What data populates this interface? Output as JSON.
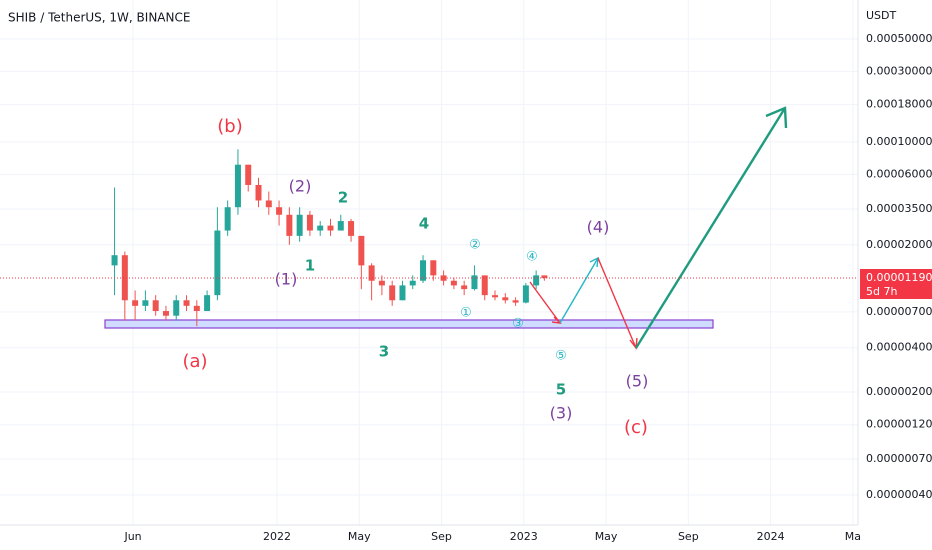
{
  "chart_data": {
    "type": "candlestick",
    "title": "SHIB / TetherUS, 1W, BINANCE",
    "y_unit": "USDT",
    "ylog": true,
    "grid": true,
    "up_color": "#26a69a",
    "down_color": "#ef5350",
    "x": [
      4.1,
      4.6,
      5.1,
      5.6,
      6.1,
      6.6,
      7.1,
      7.6,
      8.1,
      8.6,
      9.1,
      9.6,
      10.1,
      10.6,
      11.1,
      11.6,
      12.1,
      12.6,
      13.1,
      13.6,
      14.1,
      14.6,
      15.1,
      15.6,
      16.1,
      16.6,
      17.1,
      17.6,
      18.1,
      18.6,
      19.1,
      19.6,
      20.1,
      20.6,
      21.1,
      21.6,
      22.1,
      22.6,
      23.1,
      23.6,
      24.1,
      24.6,
      25.0
    ],
    "open": [
      1.45e-05,
      1.7e-05,
      8.4e-06,
      7.7e-06,
      8.4e-06,
      7.1e-06,
      6.6e-06,
      8.4e-06,
      7.7e-06,
      7.1e-06,
      9.1e-06,
      2.5e-05,
      3.6e-05,
      7e-05,
      5.1e-05,
      4e-05,
      3.6e-05,
      3.2e-05,
      2.3e-05,
      3.2e-05,
      2.5e-05,
      2.7e-05,
      2.5e-05,
      2.9e-05,
      2.3e-05,
      1.45e-05,
      1.14e-05,
      1.06e-05,
      8.4e-06,
      1.06e-05,
      1.14e-05,
      1.57e-05,
      1.24e-05,
      1.14e-05,
      1.06e-05,
      1e-05,
      1.24e-05,
      9.1e-06,
      8.8e-06,
      8.4e-06,
      8.1e-06,
      1.06e-05,
      1.24e-05
    ],
    "high": [
      4.9e-05,
      1.8e-05,
      9.8e-06,
      9.8e-06,
      9.1e-06,
      7.7e-06,
      9.1e-06,
      9.1e-06,
      8.4e-06,
      9.8e-06,
      3.6e-05,
      4e-05,
      8.9e-05,
      7e-05,
      5.7e-05,
      4.6e-05,
      4e-05,
      3.6e-05,
      3.6e-05,
      3.4e-05,
      2.9e-05,
      3e-05,
      3.2e-05,
      3e-05,
      2.3e-05,
      1.5e-05,
      1.24e-05,
      1.14e-05,
      1.14e-05,
      1.24e-05,
      1.7e-05,
      1.57e-05,
      1.34e-05,
      1.2e-05,
      1.14e-05,
      1.45e-05,
      1.24e-05,
      9.8e-06,
      9.4e-06,
      8.8e-06,
      1.1e-05,
      1.34e-05,
      1.24e-05
    ],
    "low": [
      9.1e-06,
      6.1e-06,
      6.1e-06,
      7.1e-06,
      6.6e-06,
      6.1e-06,
      6.1e-06,
      7.1e-06,
      5.6e-06,
      7.1e-06,
      8.4e-06,
      2.3e-05,
      3.2e-05,
      4.6e-05,
      3.6e-05,
      3.2e-05,
      2.7e-05,
      2e-05,
      2.1e-05,
      2.3e-05,
      2.3e-05,
      2.3e-05,
      2.5e-05,
      2.1e-05,
      1e-05,
      8.4e-06,
      9.1e-06,
      7.7e-06,
      8.4e-06,
      1e-05,
      1.1e-05,
      1.14e-05,
      1.06e-05,
      1e-05,
      9.1e-06,
      9.8e-06,
      8.4e-06,
      8.4e-06,
      8e-06,
      7.7e-06,
      8e-06,
      1e-05,
      1.14e-05
    ],
    "close": [
      1.7e-05,
      8.4e-06,
      7.7e-06,
      8.4e-06,
      7.1e-06,
      6.6e-06,
      8.4e-06,
      7.7e-06,
      7.1e-06,
      9.1e-06,
      2.5e-05,
      3.6e-05,
      7e-05,
      5.1e-05,
      4e-05,
      3.6e-05,
      3.2e-05,
      2.3e-05,
      3.2e-05,
      2.5e-05,
      2.7e-05,
      2.5e-05,
      2.9e-05,
      2.3e-05,
      1.45e-05,
      1.14e-05,
      1.06e-05,
      8.4e-06,
      1.06e-05,
      1.14e-05,
      1.57e-05,
      1.24e-05,
      1.14e-05,
      1.06e-05,
      1e-05,
      1.24e-05,
      9.1e-06,
      8.8e-06,
      8.4e-06,
      8.1e-06,
      1.06e-05,
      1.24e-05,
      1.19e-05
    ],
    "xlim": [
      -1.47,
      40.25
    ],
    "xticks": [
      {
        "value": 5,
        "label": "Jun"
      },
      {
        "value": 12,
        "label": "2022"
      },
      {
        "value": 16,
        "label": "May"
      },
      {
        "value": 20,
        "label": "Sep"
      },
      {
        "value": 24,
        "label": "2023"
      },
      {
        "value": 28,
        "label": "May"
      },
      {
        "value": 32,
        "label": "Sep"
      },
      {
        "value": 36,
        "label": "2024"
      },
      {
        "value": 40,
        "label": "Ma"
      }
    ],
    "ylim": [
      0.00092,
      2.5e-07
    ],
    "yticks": [
      {
        "value": 0.0005,
        "label": "0.00050000"
      },
      {
        "value": 0.0003,
        "label": "0.00030000"
      },
      {
        "value": 0.00018,
        "label": "0.00018000"
      },
      {
        "value": 0.0001,
        "label": "0.00010000"
      },
      {
        "value": 6e-05,
        "label": "0.00006000"
      },
      {
        "value": 3.5e-05,
        "label": "0.00003500"
      },
      {
        "value": 2e-05,
        "label": "0.00002000"
      },
      {
        "value": 7e-06,
        "label": "0.00000700"
      },
      {
        "value": 4e-06,
        "label": "0.00000400"
      },
      {
        "value": 2e-06,
        "label": "0.00000200"
      },
      {
        "value": 1.2e-06,
        "label": "0.00000120"
      },
      {
        "value": 7e-07,
        "label": "0.00000070"
      },
      {
        "value": 4e-07,
        "label": "0.00000040"
      }
    ],
    "last_price": {
      "value": 1.19e-05,
      "label": "0.00001190",
      "color": "#f23645"
    },
    "countdown": "5d 7h",
    "annotations": [
      {
        "text": "(b)",
        "color": "#f23645"
      },
      {
        "text": "(a)",
        "color": "#f23645"
      },
      {
        "text": "(c)",
        "color": "#f23645"
      },
      {
        "text": "(2)",
        "color": "#7b3fa0"
      },
      {
        "text": "(1)",
        "color": "#7b3fa0"
      },
      {
        "text": "(4)",
        "color": "#7b3fa0"
      },
      {
        "text": "(5)",
        "color": "#7b3fa0"
      },
      {
        "text": "(3)",
        "color": "#7b3fa0"
      },
      {
        "text": "2",
        "color": "#1f9c7f"
      },
      {
        "text": "1",
        "color": "#1f9c7f"
      },
      {
        "text": "4",
        "color": "#1f9c7f"
      },
      {
        "text": "3",
        "color": "#1f9c7f"
      },
      {
        "text": "5",
        "color": "#1f9c7f"
      },
      {
        "text": "②",
        "color": "#26b6c6"
      },
      {
        "text": "①",
        "color": "#26b6c6"
      },
      {
        "text": "④",
        "color": "#26b6c6"
      },
      {
        "text": "③",
        "color": "#26b6c6"
      },
      {
        "text": "⑤",
        "color": "#26b6c6"
      }
    ]
  }
}
